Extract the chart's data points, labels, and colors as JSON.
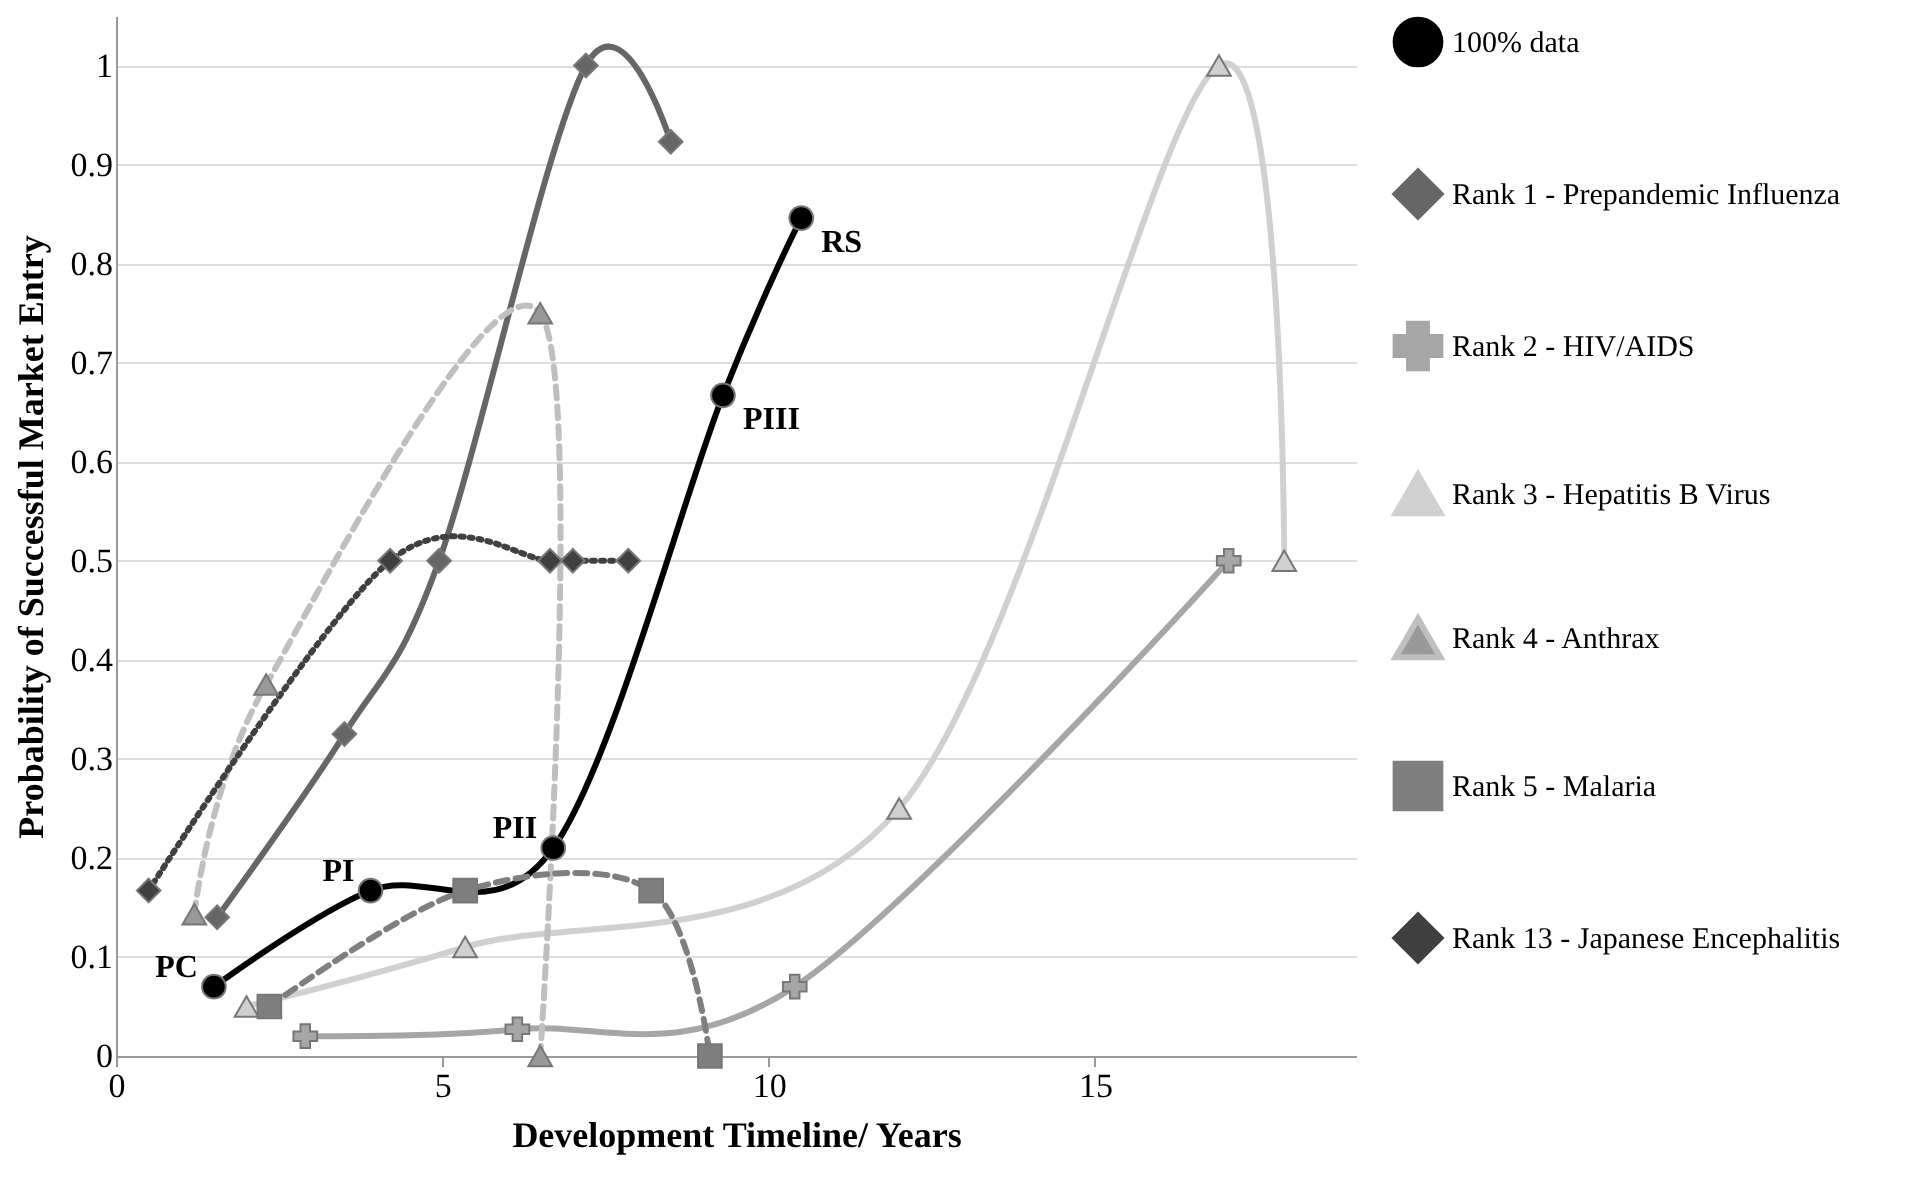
{
  "chart_data": {
    "type": "line",
    "xlabel": "Development Timeline/ Years",
    "ylabel": "Probability of Successful Market Entry",
    "xlim": [
      0,
      19
    ],
    "xticks": [
      0,
      5,
      10,
      15
    ],
    "ylim": [
      0,
      1.05
    ],
    "yticks": [
      0,
      0.1,
      0.2,
      0.3,
      0.4,
      0.5,
      0.6,
      0.7,
      0.8,
      0.9,
      1
    ],
    "grid": "y",
    "legend": "right",
    "series": [
      {
        "name": "100% data",
        "color": "#000000",
        "marker": "circle",
        "line_style": "solid",
        "x": [
          1.5,
          3.9,
          6.7,
          9.3,
          10.5
        ],
        "values": [
          0.07,
          0.167,
          0.21,
          0.667,
          0.846
        ]
      },
      {
        "name": "Rank 1 - Prepandemic Influenza",
        "color": "#666666",
        "marker": "diamond",
        "line_style": "solid",
        "x": [
          1.55,
          3.5,
          4.95,
          7.2,
          8.5
        ],
        "values": [
          0.14,
          0.325,
          0.5,
          1,
          0.923
        ]
      },
      {
        "name": "Rank 2 - HIV/AIDS",
        "color": "#a6a6a6",
        "marker": "cross",
        "line_style": "solid",
        "x": [
          2.9,
          6.15,
          10.4,
          17.05
        ],
        "values": [
          0.02,
          0.027,
          0.07,
          0.5
        ]
      },
      {
        "name": "Rank 3 - Hepatitis B Virus",
        "color": "#d0d0d0",
        "marker": "triangle",
        "line_style": "solid",
        "x": [
          2.0,
          5.35,
          12.0,
          16.9,
          17.9
        ],
        "values": [
          0.05,
          0.11,
          0.25,
          1,
          0.5
        ]
      },
      {
        "name": "Rank 4 - Anthrax",
        "color": "#bfbfbf",
        "marker": "triangle",
        "line_style": "dashed",
        "x": [
          1.2,
          2.3,
          6.5,
          6.5
        ],
        "values": [
          0.143,
          0.375,
          0.75,
          0
        ]
      },
      {
        "name": "Rank 5 - Malaria",
        "color": "#7f7f7f",
        "marker": "square",
        "line_style": "dashed",
        "x": [
          2.35,
          5.35,
          8.2,
          9.1
        ],
        "values": [
          0.05,
          0.167,
          0.167,
          0
        ]
      },
      {
        "name": "Rank 13 - Japanese Encephalitis",
        "color": "#404040",
        "marker": "diamond",
        "line_style": "dotted",
        "x": [
          0.5,
          4.2,
          6.65,
          7.0,
          7.85
        ],
        "values": [
          0.167,
          0.5,
          0.5,
          0.5,
          0.5
        ]
      }
    ],
    "annotations": [
      {
        "text": "PC",
        "x": 1.5,
        "y": 0.07
      },
      {
        "text": "PI",
        "x": 3.9,
        "y": 0.167
      },
      {
        "text": "PII",
        "x": 6.7,
        "y": 0.21
      },
      {
        "text": "PIII",
        "x": 9.3,
        "y": 0.667
      },
      {
        "text": "RS",
        "x": 10.5,
        "y": 0.846
      }
    ]
  }
}
